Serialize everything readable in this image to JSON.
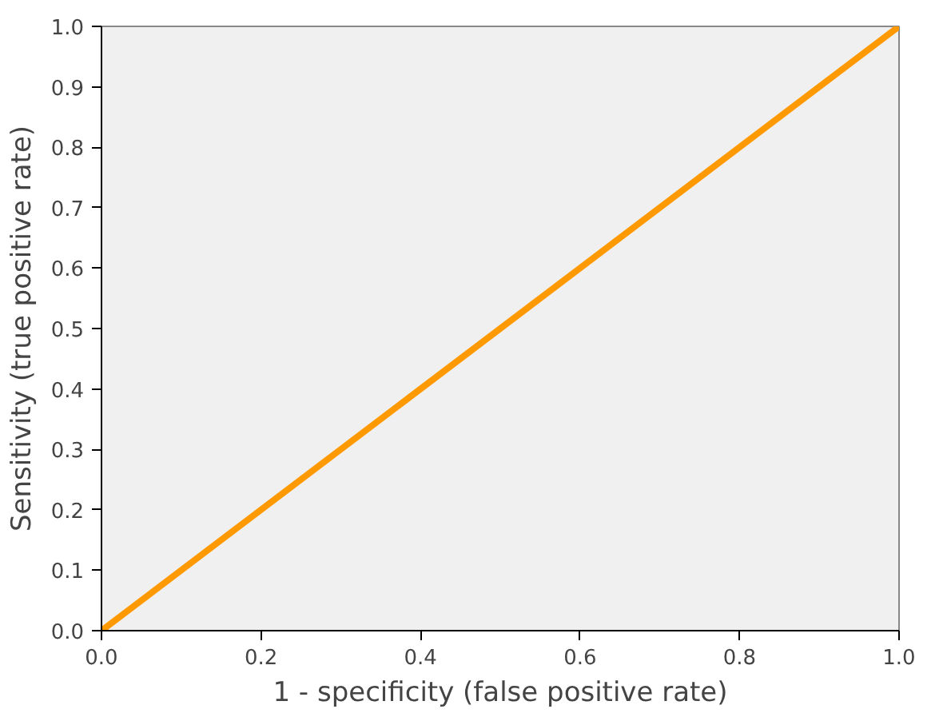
{
  "chart_data": {
    "type": "line",
    "xlabel": "1 - specificity (false positive rate)",
    "ylabel": "Sensitivity (true positive rate)",
    "x": [
      0,
      1
    ],
    "series": [
      {
        "color": "#ff9900",
        "values": [
          0,
          1
        ]
      }
    ],
    "xlim": [
      0,
      1
    ],
    "ylim": [
      0,
      1
    ],
    "xticks": [
      {
        "value": 0,
        "label": "0.0"
      },
      {
        "value": 0.2,
        "label": "0.2"
      },
      {
        "value": 0.4,
        "label": "0.4"
      },
      {
        "value": 0.6,
        "label": "0.6"
      },
      {
        "value": 0.8,
        "label": "0.8"
      },
      {
        "value": 1,
        "label": "1.0"
      }
    ],
    "yticks": [
      {
        "value": 0,
        "label": "0.0"
      },
      {
        "value": 0.1,
        "label": "0.1"
      },
      {
        "value": 0.2,
        "label": "0.2"
      },
      {
        "value": 0.3,
        "label": "0.3"
      },
      {
        "value": 0.4,
        "label": "0.4"
      },
      {
        "value": 0.5,
        "label": "0.5"
      },
      {
        "value": 0.6,
        "label": "0.6"
      },
      {
        "value": 0.7,
        "label": "0.7"
      },
      {
        "value": 0.8,
        "label": "0.8"
      },
      {
        "value": 0.9,
        "label": "0.9"
      },
      {
        "value": 1,
        "label": "1.0"
      }
    ],
    "grid": false,
    "marker": "none",
    "line_style": "solid"
  }
}
